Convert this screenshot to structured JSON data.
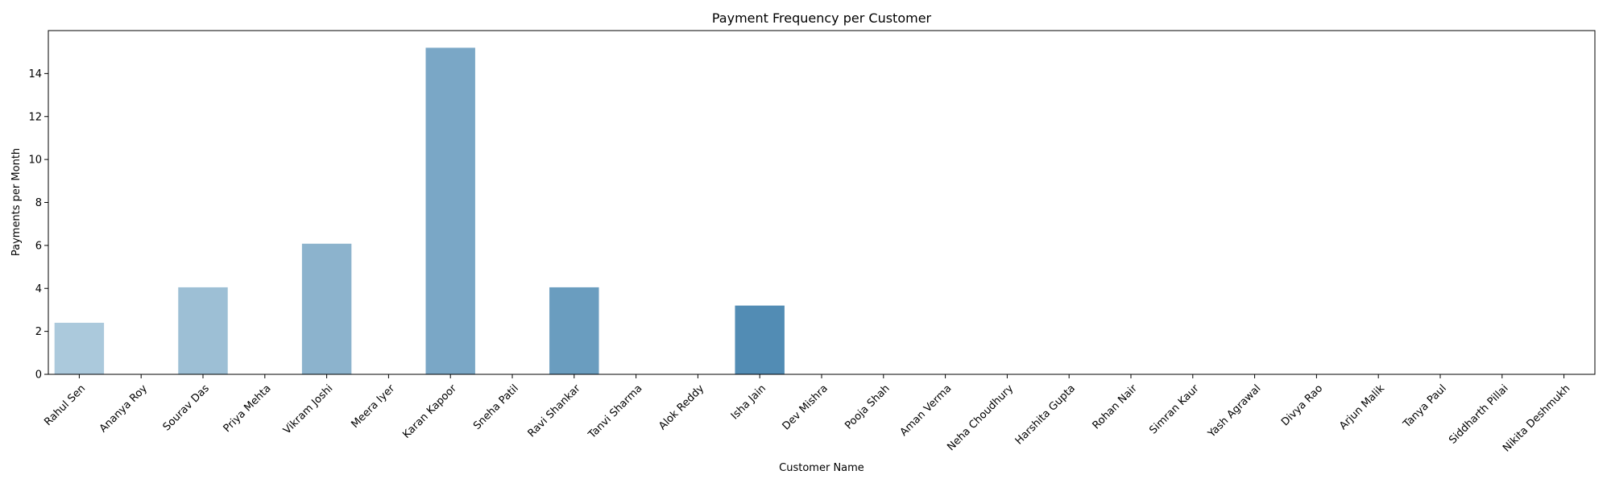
{
  "chart_data": {
    "type": "bar",
    "title": "Payment Frequency per Customer",
    "xlabel": "Customer Name",
    "ylabel": "Payments per Month",
    "ylim": [
      0,
      16
    ],
    "yticks": [
      0,
      2,
      4,
      6,
      8,
      10,
      12,
      14
    ],
    "grid": false,
    "legend": "none",
    "categories": [
      "Rahul Sen",
      "Ananya Roy",
      "Sourav Das",
      "Priya Mehta",
      "Vikram Joshi",
      "Meera Iyer",
      "Karan Kapoor",
      "Sneha Patil",
      "Ravi Shankar",
      "Tanvi Sharma",
      "Alok Reddy",
      "Isha Jain",
      "Dev Mishra",
      "Pooja Shah",
      "Aman Verma",
      "Neha Choudhury",
      "Harshita Gupta",
      "Rohan Nair",
      "Simran Kaur",
      "Yash Agrawal",
      "Divya Rao",
      "Arjun Malik",
      "Tanya Paul",
      "Siddharth Pillai",
      "Nikita Deshmukh"
    ],
    "values": [
      2.4,
      0,
      4.05,
      0,
      6.08,
      0,
      15.2,
      0,
      4.05,
      0,
      0,
      3.2,
      0,
      0,
      0,
      0,
      0,
      0,
      0,
      0,
      0,
      0,
      0,
      0,
      0
    ],
    "bar_colors": [
      "#abc9dc",
      "#a5c5da",
      "#9dbfd5",
      "#95b9d2",
      "#8cb3cd",
      "#83adca",
      "#7aa7c6",
      "#71a1c2",
      "#6a9dbf",
      "#6298bc",
      "#5a92b8",
      "#528cb4",
      "#4b87b0",
      "#4583ad",
      "#3f7faa",
      "#397aa6",
      "#3375a2",
      "#2e719f",
      "#296d9b",
      "#246898",
      "#1f6494",
      "#1b6090",
      "#175c8c",
      "#135888",
      "#0f5484"
    ]
  }
}
